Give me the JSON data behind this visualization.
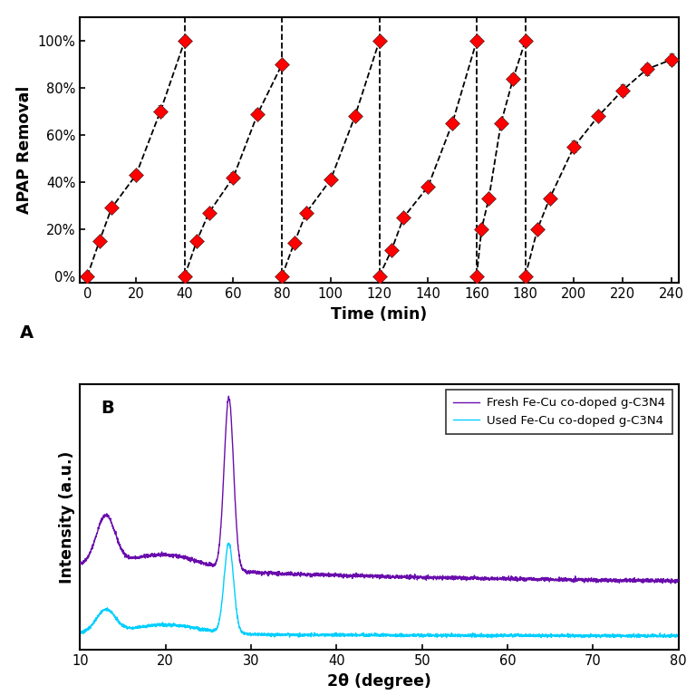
{
  "title_A": "A",
  "title_B": "B",
  "xlabel_A": "Time (min)",
  "ylabel_A": "APAP Removal",
  "xlabel_B": "2θ (degree)",
  "ylabel_B": "Intensity (a.u.)",
  "cycles": [
    {
      "times": [
        0,
        5,
        10,
        20,
        30,
        40
      ],
      "values": [
        0.0,
        0.15,
        0.29,
        0.43,
        0.7,
        1.0
      ],
      "errors": [
        0.0,
        0.01,
        0.015,
        0.02,
        0.025,
        0.02
      ]
    },
    {
      "times": [
        40,
        45,
        50,
        60,
        70,
        80
      ],
      "values": [
        0.0,
        0.15,
        0.27,
        0.42,
        0.69,
        0.9
      ],
      "errors": [
        0.0,
        0.01,
        0.015,
        0.02,
        0.02,
        0.02
      ]
    },
    {
      "times": [
        80,
        85,
        90,
        100,
        110,
        120
      ],
      "values": [
        0.0,
        0.14,
        0.27,
        0.41,
        0.68,
        1.0
      ],
      "errors": [
        0.0,
        0.01,
        0.015,
        0.02,
        0.02,
        0.02
      ]
    },
    {
      "times": [
        120,
        125,
        130,
        140,
        150,
        160
      ],
      "values": [
        0.0,
        0.11,
        0.25,
        0.38,
        0.65,
        1.0
      ],
      "errors": [
        0.0,
        0.01,
        0.015,
        0.02,
        0.02,
        0.02
      ]
    },
    {
      "times": [
        160,
        162,
        165,
        170,
        175,
        180
      ],
      "values": [
        0.0,
        0.2,
        0.33,
        0.65,
        0.84,
        1.0
      ],
      "errors": [
        0.0,
        0.01,
        0.015,
        0.02,
        0.02,
        0.02
      ]
    },
    {
      "times": [
        180,
        185,
        190,
        200,
        210,
        220,
        230,
        240
      ],
      "values": [
        0.0,
        0.2,
        0.33,
        0.55,
        0.68,
        0.79,
        0.88,
        0.92
      ],
      "errors": [
        0.0,
        0.01,
        0.015,
        0.025,
        0.02,
        0.025,
        0.025,
        0.025
      ]
    }
  ],
  "vlines": [
    40,
    80,
    120,
    160,
    180
  ],
  "marker_color": "#FF0000",
  "background_color": "#ffffff",
  "legend_fresh": "Fresh Fe-Cu co-doped g-C3N4",
  "legend_used": "Used Fe-Cu co-doped g-C3N4",
  "fresh_color": "#6A0DAD",
  "used_color": "#00CFFF",
  "xrd_xticks": [
    10,
    20,
    30,
    40,
    50,
    60,
    70,
    80
  ]
}
